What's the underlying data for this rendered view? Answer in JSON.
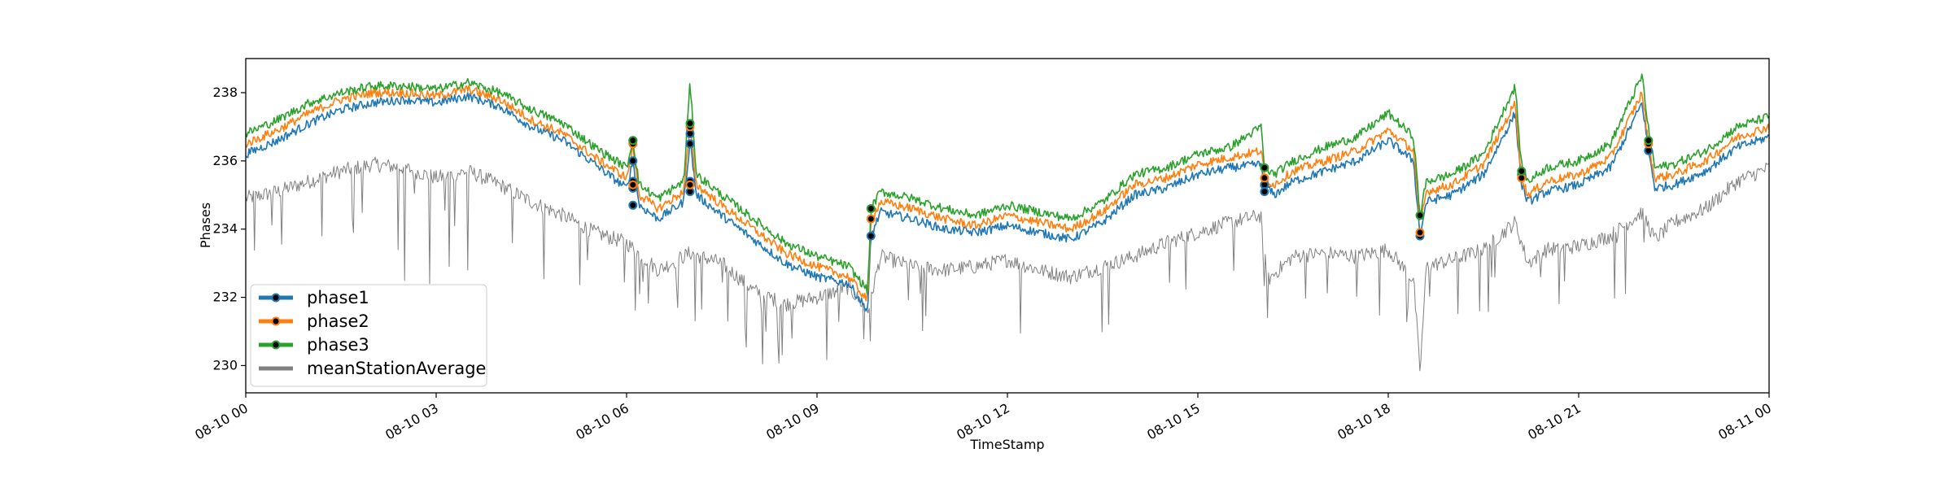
{
  "chart_data": {
    "type": "line",
    "title": "",
    "xlabel": "TimeStamp",
    "ylabel": "Phases",
    "xlim": [
      "08-10 00",
      "08-11 00"
    ],
    "ylim": [
      229.2,
      239.0
    ],
    "x_unit": "hours since 08-10 00",
    "x_ticks": [
      {
        "value": 0,
        "label": "08-10 00"
      },
      {
        "value": 3,
        "label": "08-10 03"
      },
      {
        "value": 6,
        "label": "08-10 06"
      },
      {
        "value": 9,
        "label": "08-10 09"
      },
      {
        "value": 12,
        "label": "08-10 12"
      },
      {
        "value": 15,
        "label": "08-10 15"
      },
      {
        "value": 18,
        "label": "08-10 18"
      },
      {
        "value": 21,
        "label": "08-10 21"
      },
      {
        "value": 24,
        "label": "08-11 00"
      }
    ],
    "y_ticks": [
      230,
      232,
      234,
      236,
      238
    ],
    "grid": false,
    "legend_position": "lower-left",
    "series": [
      {
        "name": "phase1",
        "color": "#1f77b4",
        "marker": true,
        "x": [
          0,
          0.5,
          1,
          1.5,
          2,
          2.5,
          3,
          3.5,
          4,
          4.5,
          5,
          5.5,
          6.0,
          6.1,
          6.2,
          6.5,
          6.9,
          7.0,
          7.1,
          7.5,
          8,
          8.5,
          9,
          9.5,
          9.8,
          9.85,
          10,
          10.5,
          11,
          11.5,
          12,
          12.5,
          13,
          13.5,
          14,
          14.5,
          15,
          15.5,
          16.0,
          16.05,
          16.2,
          16.5,
          17,
          17.5,
          18.0,
          18.4,
          18.5,
          18.6,
          19,
          19.5,
          20.0,
          20.1,
          20.2,
          20.5,
          21,
          21.5,
          22.0,
          22.1,
          22.2,
          22.5,
          23,
          23.5,
          24
        ],
        "y": [
          236.2,
          236.6,
          237.1,
          237.5,
          237.7,
          237.8,
          237.7,
          237.9,
          237.6,
          237.0,
          236.6,
          235.9,
          235.2,
          236.0,
          234.7,
          234.3,
          234.8,
          236.6,
          235.0,
          234.4,
          233.7,
          233.0,
          232.6,
          232.4,
          231.6,
          233.8,
          234.5,
          234.3,
          234.0,
          233.9,
          234.1,
          233.9,
          233.7,
          234.2,
          235.0,
          235.2,
          235.6,
          235.8,
          235.9,
          235.3,
          235.0,
          235.4,
          235.7,
          236.0,
          236.6,
          236.0,
          233.8,
          234.8,
          235.0,
          235.6,
          237.4,
          235.3,
          234.8,
          235.1,
          235.3,
          235.8,
          237.7,
          236.3,
          235.2,
          235.3,
          235.7,
          236.4,
          236.7
        ],
        "markers": [
          {
            "x": 6.1,
            "y": 236.6
          },
          {
            "x": 6.1,
            "y": 236.0
          },
          {
            "x": 6.1,
            "y": 235.4
          },
          {
            "x": 6.1,
            "y": 235.2
          },
          {
            "x": 6.1,
            "y": 234.7
          },
          {
            "x": 7.0,
            "y": 236.8
          },
          {
            "x": 7.0,
            "y": 236.5
          },
          {
            "x": 7.0,
            "y": 235.4
          },
          {
            "x": 7.0,
            "y": 235.1
          },
          {
            "x": 9.85,
            "y": 233.8
          },
          {
            "x": 16.05,
            "y": 235.3
          },
          {
            "x": 16.05,
            "y": 235.1
          },
          {
            "x": 18.5,
            "y": 233.8
          },
          {
            "x": 20.1,
            "y": 235.6
          },
          {
            "x": 22.1,
            "y": 236.3
          }
        ]
      },
      {
        "name": "phase2",
        "color": "#ff7f0e",
        "marker": true,
        "x": [
          0,
          0.5,
          1,
          1.5,
          2,
          2.5,
          3,
          3.5,
          4,
          4.5,
          5,
          5.5,
          6.0,
          6.1,
          6.2,
          6.5,
          6.9,
          7.0,
          7.1,
          7.5,
          8,
          8.5,
          9,
          9.5,
          9.8,
          9.85,
          10,
          10.5,
          11,
          11.5,
          12,
          12.5,
          13,
          13.5,
          14,
          14.5,
          15,
          15.5,
          16.0,
          16.05,
          16.2,
          16.5,
          17,
          17.5,
          18.0,
          18.4,
          18.5,
          18.6,
          19,
          19.5,
          20.0,
          20.1,
          20.2,
          20.5,
          21,
          21.5,
          22.0,
          22.1,
          22.2,
          22.5,
          23,
          23.5,
          24
        ],
        "y": [
          236.5,
          236.9,
          237.4,
          237.8,
          238.0,
          238.0,
          237.9,
          238.1,
          237.8,
          237.2,
          236.8,
          236.1,
          235.5,
          236.4,
          235.0,
          234.6,
          235.1,
          237.0,
          235.3,
          234.7,
          234.0,
          233.3,
          232.9,
          232.6,
          231.9,
          234.3,
          234.8,
          234.6,
          234.3,
          234.1,
          234.4,
          234.2,
          234.0,
          234.5,
          235.3,
          235.5,
          235.9,
          236.1,
          236.3,
          235.5,
          235.3,
          235.7,
          236.0,
          236.3,
          236.9,
          236.3,
          234.1,
          235.1,
          235.3,
          235.9,
          237.7,
          235.5,
          235.0,
          235.4,
          235.6,
          236.1,
          238.0,
          236.5,
          235.5,
          235.6,
          236.0,
          236.7,
          237.0
        ],
        "markers": [
          {
            "x": 6.1,
            "y": 236.5
          },
          {
            "x": 6.1,
            "y": 235.3
          },
          {
            "x": 7.0,
            "y": 237.0
          },
          {
            "x": 7.0,
            "y": 235.3
          },
          {
            "x": 9.85,
            "y": 234.3
          },
          {
            "x": 16.05,
            "y": 235.5
          },
          {
            "x": 18.5,
            "y": 233.9
          },
          {
            "x": 20.1,
            "y": 235.5
          },
          {
            "x": 22.1,
            "y": 236.5
          }
        ]
      },
      {
        "name": "phase3",
        "color": "#2ca02c",
        "marker": true,
        "x": [
          0,
          0.5,
          1,
          1.5,
          2,
          2.5,
          3,
          3.5,
          4,
          4.5,
          5,
          5.5,
          6.0,
          6.1,
          6.2,
          6.5,
          6.9,
          7.0,
          7.1,
          7.5,
          8,
          8.5,
          9,
          9.5,
          9.8,
          9.85,
          10,
          10.5,
          11,
          11.5,
          12,
          12.5,
          13,
          13.5,
          14,
          14.5,
          15,
          15.5,
          16.0,
          16.05,
          16.2,
          16.5,
          17,
          17.5,
          18.0,
          18.4,
          18.5,
          18.6,
          19,
          19.5,
          20.0,
          20.1,
          20.2,
          20.5,
          21,
          21.5,
          22.0,
          22.1,
          22.2,
          22.5,
          23,
          23.5,
          24
        ],
        "y": [
          236.8,
          237.2,
          237.7,
          238.0,
          238.2,
          238.2,
          238.1,
          238.3,
          238.0,
          237.5,
          237.1,
          236.4,
          235.8,
          236.6,
          235.3,
          234.9,
          235.4,
          238.3,
          235.6,
          235.0,
          234.3,
          233.6,
          233.2,
          232.9,
          232.2,
          234.6,
          235.1,
          234.9,
          234.6,
          234.4,
          234.7,
          234.5,
          234.3,
          234.8,
          235.6,
          235.8,
          236.2,
          236.4,
          237.0,
          235.8,
          235.6,
          236.0,
          236.4,
          236.7,
          237.4,
          236.7,
          234.4,
          235.4,
          235.6,
          236.2,
          238.2,
          235.8,
          235.4,
          235.8,
          236.0,
          236.5,
          238.5,
          236.9,
          235.8,
          235.9,
          236.3,
          237.0,
          237.3
        ],
        "markers": [
          {
            "x": 6.1,
            "y": 236.6
          },
          {
            "x": 7.0,
            "y": 237.1
          },
          {
            "x": 9.85,
            "y": 234.6
          },
          {
            "x": 16.05,
            "y": 235.8
          },
          {
            "x": 18.5,
            "y": 234.4
          },
          {
            "x": 20.1,
            "y": 235.7
          },
          {
            "x": 22.1,
            "y": 236.6
          }
        ]
      },
      {
        "name": "meanStationAverage",
        "color": "#808080",
        "marker": false,
        "x": [
          0,
          0.5,
          1,
          1.5,
          2,
          2.5,
          3,
          3.5,
          4,
          4.5,
          5,
          5.5,
          6.0,
          6.5,
          7.0,
          7.5,
          8,
          8.5,
          9,
          9.5,
          9.8,
          10,
          10.5,
          11,
          11.5,
          12,
          12.5,
          13,
          13.5,
          14,
          14.5,
          15,
          15.5,
          16.0,
          16.1,
          16.5,
          17,
          17.5,
          18.0,
          18.4,
          18.5,
          18.6,
          19,
          19.5,
          20.0,
          20.2,
          20.5,
          21,
          21.5,
          22.0,
          22.2,
          22.5,
          23,
          23.5,
          24
        ],
        "y": [
          234.9,
          235.1,
          235.4,
          235.7,
          235.9,
          235.8,
          235.5,
          235.7,
          235.3,
          234.8,
          234.4,
          233.9,
          233.6,
          232.8,
          233.3,
          233.0,
          232.2,
          231.8,
          232.0,
          232.3,
          231.6,
          233.2,
          232.9,
          232.8,
          232.9,
          233.1,
          232.8,
          232.6,
          232.9,
          233.2,
          233.6,
          233.9,
          234.2,
          234.4,
          232.5,
          233.2,
          233.3,
          233.2,
          233.4,
          232.5,
          229.8,
          232.9,
          233.1,
          233.4,
          234.2,
          233.0,
          233.4,
          233.5,
          233.8,
          234.5,
          233.7,
          234.2,
          234.6,
          235.4,
          235.8
        ],
        "dips": [
          {
            "x": 1.2,
            "y": 233.8
          },
          {
            "x": 1.7,
            "y": 233.9
          },
          {
            "x": 2.4,
            "y": 233.4
          },
          {
            "x": 2.5,
            "y": 232.5
          },
          {
            "x": 2.9,
            "y": 232.4
          },
          {
            "x": 3.2,
            "y": 232.9
          },
          {
            "x": 3.5,
            "y": 232.8
          },
          {
            "x": 4.2,
            "y": 233.6
          },
          {
            "x": 6.2,
            "y": 232.1
          },
          {
            "x": 6.8,
            "y": 231.7
          },
          {
            "x": 7.6,
            "y": 231.3
          },
          {
            "x": 8.2,
            "y": 231.0
          },
          {
            "x": 8.6,
            "y": 230.8
          },
          {
            "x": 16.1,
            "y": 231.4
          },
          {
            "x": 20.4,
            "y": 232.6
          },
          {
            "x": 21.6,
            "y": 233.6
          }
        ]
      }
    ]
  }
}
